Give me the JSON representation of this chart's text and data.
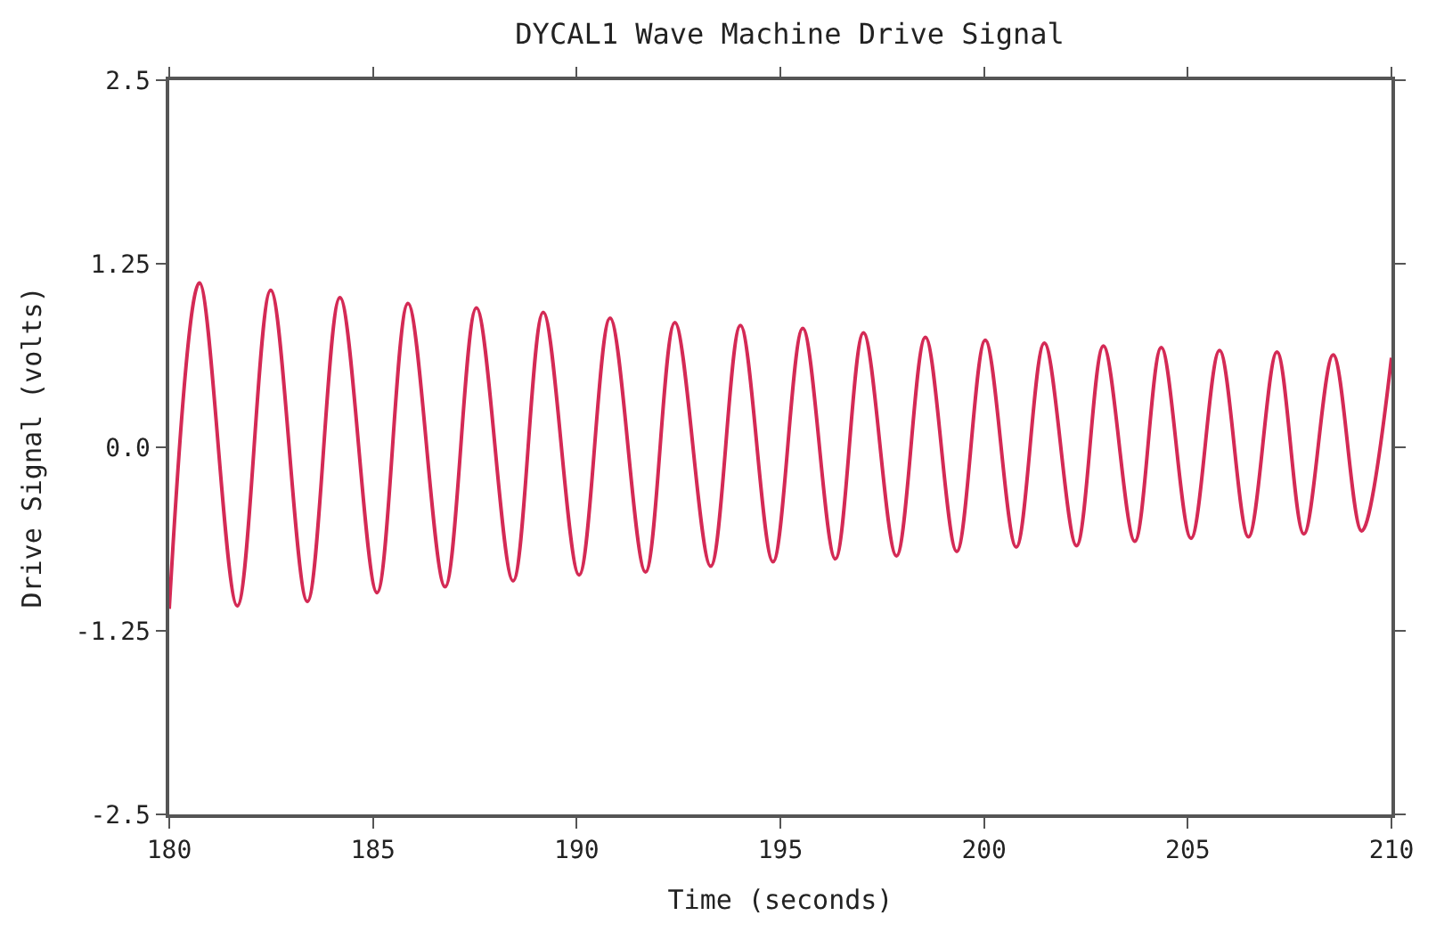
{
  "chart_data": {
    "type": "line",
    "title": "DYCAL1 Wave Machine Drive Signal",
    "xlabel": "Time (seconds)",
    "ylabel": "Drive Signal (volts)",
    "x": [
      180,
      180.74,
      181.67,
      182.49,
      183.39,
      184.19,
      185.1,
      185.86,
      186.77,
      187.54,
      188.44,
      189.18,
      190.06,
      190.82,
      191.69,
      192.41,
      193.29,
      194.02,
      194.82,
      195.55,
      196.35,
      197.04,
      197.85,
      198.56,
      199.33,
      200.03,
      200.79,
      201.48,
      202.27,
      202.93,
      203.7,
      204.35,
      205.08,
      205.78,
      206.49,
      207.19,
      207.85,
      208.57,
      209.27,
      210
    ],
    "series": [
      {
        "color": "#d42a55",
        "values": [
          -1.1,
          1.12,
          -1.08,
          1.07,
          -1.05,
          1.02,
          -0.99,
          0.98,
          -0.95,
          0.95,
          -0.91,
          0.92,
          -0.87,
          0.88,
          -0.85,
          0.85,
          -0.81,
          0.83,
          -0.78,
          0.81,
          -0.76,
          0.78,
          -0.74,
          0.75,
          -0.71,
          0.73,
          -0.68,
          0.71,
          -0.67,
          0.69,
          -0.64,
          0.68,
          -0.62,
          0.66,
          -0.61,
          0.65,
          -0.59,
          0.63,
          -0.57,
          0.61
        ]
      }
    ],
    "xlim": [
      180,
      210
    ],
    "xticks": [
      180,
      185,
      190,
      195,
      200,
      205,
      210
    ],
    "ylim": [
      -2.5,
      2.5
    ],
    "yticks": [
      -2.5,
      -1.25,
      {
        "value": 0,
        "label": "0.0"
      },
      1.25,
      2.5
    ],
    "marker": "none",
    "line_style": "solid"
  }
}
